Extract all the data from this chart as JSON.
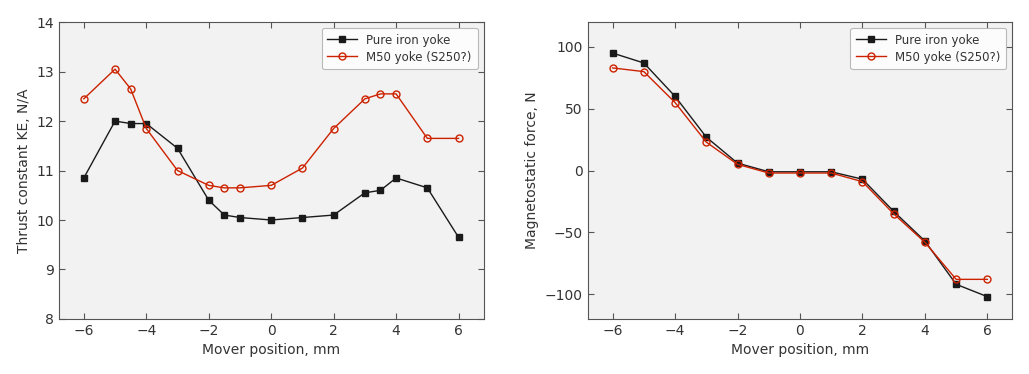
{
  "left_chart": {
    "xlabel": "Mover position, mm",
    "ylabel": "Thrust constant KE, N/A",
    "xlim": [
      -6.8,
      6.8
    ],
    "ylim": [
      8,
      14
    ],
    "yticks": [
      8,
      9,
      10,
      11,
      12,
      13,
      14
    ],
    "xticks": [
      -6,
      -4,
      -2,
      0,
      2,
      4,
      6
    ],
    "pure_iron": {
      "x": [
        -6,
        -5,
        -4.5,
        -4,
        -3,
        -2,
        -1.5,
        -1,
        0,
        1,
        2,
        3,
        3.5,
        4,
        5,
        6
      ],
      "y": [
        10.85,
        12.0,
        11.95,
        11.95,
        11.45,
        10.4,
        10.1,
        10.05,
        10.0,
        10.05,
        10.1,
        10.55,
        10.6,
        10.85,
        10.65,
        9.65
      ],
      "color": "#1a1a1a",
      "marker": "s",
      "markersize": 5
    },
    "m50": {
      "x": [
        -6,
        -5,
        -4.5,
        -4,
        -3,
        -2,
        -1.5,
        -1,
        0,
        1,
        2,
        3,
        3.5,
        4,
        5,
        6
      ],
      "y": [
        12.45,
        13.05,
        12.65,
        11.85,
        11.0,
        10.7,
        10.65,
        10.65,
        10.7,
        11.05,
        11.85,
        12.45,
        12.55,
        12.55,
        11.65,
        11.65
      ],
      "color": "#cc2200",
      "marker": "o",
      "markersize": 5
    },
    "legend_labels": [
      "Pure iron yoke",
      "M50 yoke (S250?)"
    ]
  },
  "right_chart": {
    "xlabel": "Mover position, mm",
    "ylabel": "Magnetostatic force, N",
    "xlim": [
      -6.8,
      6.8
    ],
    "ylim": [
      -120,
      120
    ],
    "yticks": [
      -100,
      -50,
      0,
      50,
      100
    ],
    "xticks": [
      -6,
      -4,
      -2,
      0,
      2,
      4,
      6
    ],
    "pure_iron": {
      "x": [
        -6,
        -5,
        -4,
        -3,
        -2,
        -1,
        0,
        1,
        2,
        3,
        4,
        5,
        6
      ],
      "y": [
        95,
        87,
        60,
        27,
        6,
        -1,
        -1,
        -1,
        -7,
        -33,
        -57,
        -92,
        -102
      ],
      "color": "#1a1a1a",
      "marker": "s",
      "markersize": 5
    },
    "m50": {
      "x": [
        -6,
        -5,
        -4,
        -3,
        -2,
        -1,
        0,
        1,
        2,
        3,
        4,
        5,
        6
      ],
      "y": [
        83,
        80,
        55,
        23,
        5,
        -2,
        -2,
        -2,
        -9,
        -35,
        -58,
        -88,
        -88
      ],
      "color": "#cc2200",
      "marker": "o",
      "markersize": 5
    },
    "legend_labels": [
      "Pure iron yoke",
      "M50 yoke (S250?)"
    ]
  },
  "bg_color": "#f2f2f2",
  "fig_bg_color": "#ffffff"
}
